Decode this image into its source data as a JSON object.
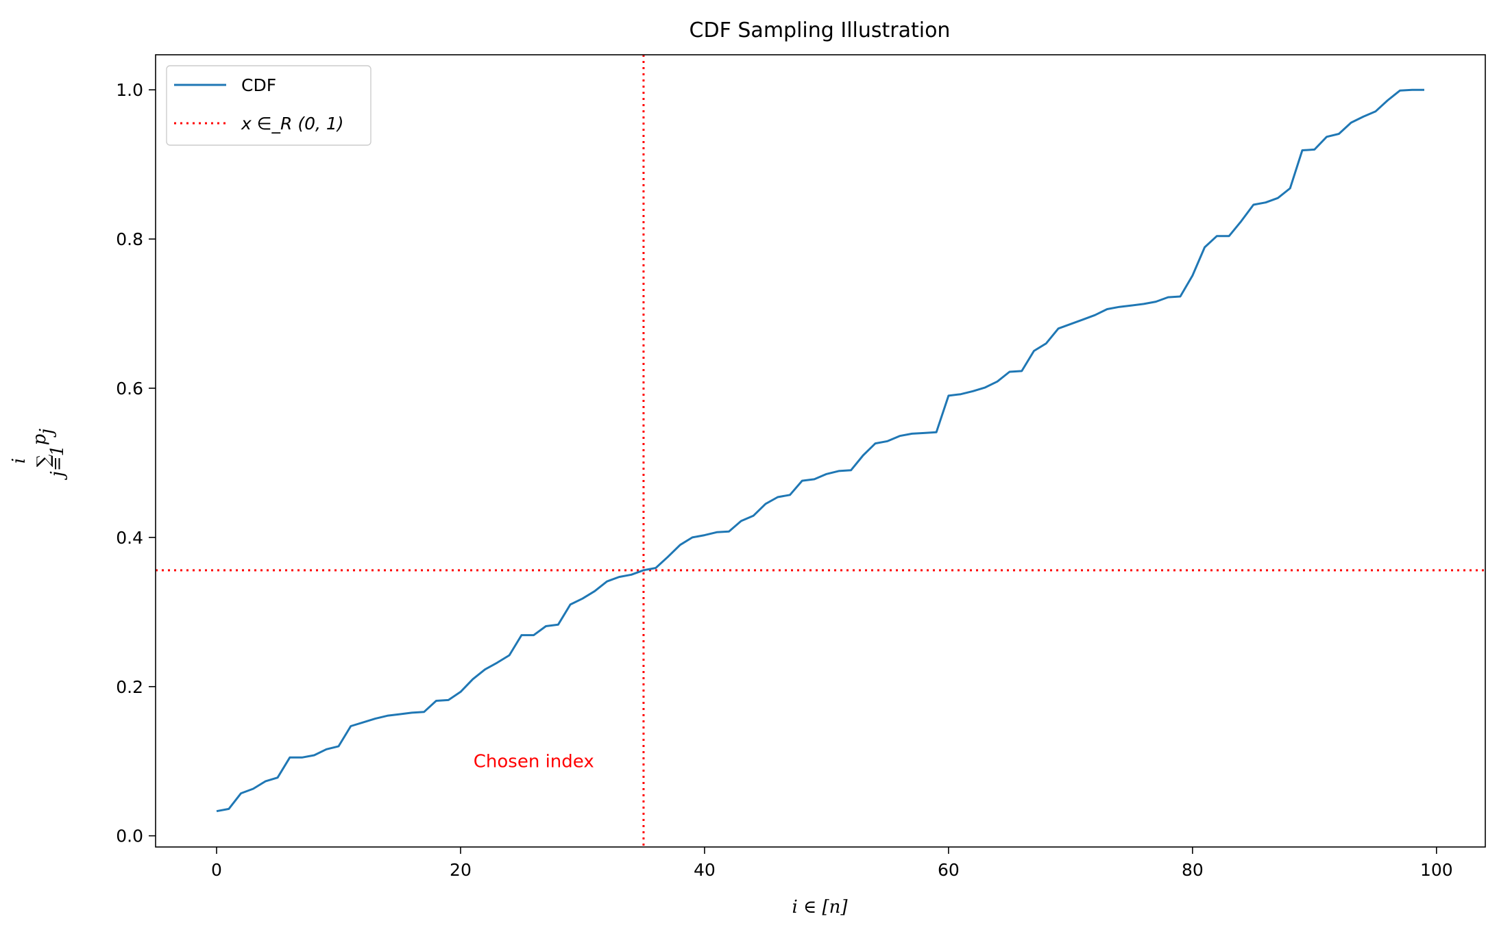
{
  "chart_data": {
    "type": "line",
    "title": "CDF Sampling Illustration",
    "xlabel": "i ∈ [n]",
    "ylabel": {
      "sum": "∑",
      "upper": "i",
      "lower": "j=1",
      "term": "p",
      "term_sub": "j"
    },
    "xlim": [
      -5,
      104
    ],
    "ylim": [
      -0.015,
      1.047
    ],
    "xticks": [
      0,
      20,
      40,
      60,
      80,
      100
    ],
    "yticks": [
      0.0,
      0.2,
      0.4,
      0.6,
      0.8,
      1.0
    ],
    "ytick_labels": [
      "0.0",
      "0.2",
      "0.4",
      "0.6",
      "0.8",
      "1.0"
    ],
    "grid": false,
    "legend_position": "top-left",
    "series": [
      {
        "name": "CDF",
        "color": "#1f77b4",
        "x": [
          0,
          1,
          2,
          3,
          4,
          5,
          6,
          7,
          8,
          9,
          10,
          11,
          12,
          13,
          14,
          15,
          16,
          17,
          18,
          19,
          20,
          21,
          22,
          23,
          24,
          25,
          26,
          27,
          28,
          29,
          30,
          31,
          32,
          33,
          34,
          35,
          36,
          37,
          38,
          39,
          40,
          41,
          42,
          43,
          44,
          45,
          46,
          47,
          48,
          49,
          50,
          51,
          52,
          53,
          54,
          55,
          56,
          57,
          58,
          59,
          60,
          61,
          62,
          63,
          64,
          65,
          66,
          67,
          68,
          69,
          70,
          71,
          72,
          73,
          74,
          75,
          76,
          77,
          78,
          79,
          80,
          81,
          82,
          83,
          84,
          85,
          86,
          87,
          88,
          89,
          90,
          91,
          92,
          93,
          94,
          95,
          96,
          97,
          98,
          99
        ],
        "y": [
          0.033,
          0.036,
          0.057,
          0.063,
          0.073,
          0.078,
          0.105,
          0.105,
          0.108,
          0.116,
          0.12,
          0.147,
          0.152,
          0.157,
          0.161,
          0.163,
          0.165,
          0.166,
          0.181,
          0.182,
          0.193,
          0.21,
          0.223,
          0.232,
          0.242,
          0.269,
          0.269,
          0.281,
          0.283,
          0.31,
          0.318,
          0.328,
          0.341,
          0.347,
          0.35,
          0.356,
          0.359,
          0.374,
          0.39,
          0.4,
          0.403,
          0.407,
          0.408,
          0.422,
          0.429,
          0.445,
          0.454,
          0.457,
          0.476,
          0.478,
          0.485,
          0.489,
          0.49,
          0.51,
          0.526,
          0.529,
          0.536,
          0.539,
          0.54,
          0.541,
          0.59,
          0.592,
          0.596,
          0.601,
          0.609,
          0.622,
          0.623,
          0.65,
          0.66,
          0.68,
          0.686,
          0.692,
          0.698,
          0.706,
          0.709,
          0.711,
          0.713,
          0.716,
          0.722,
          0.723,
          0.751,
          0.789,
          0.804,
          0.804,
          0.824,
          0.846,
          0.849,
          0.855,
          0.868,
          0.919,
          0.92,
          0.937,
          0.941,
          0.956,
          0.964,
          0.971,
          0.986,
          0.999,
          1.0,
          1.0
        ]
      }
    ],
    "reference_lines": {
      "name": "x ∈_R (0, 1)",
      "color": "#ff0000",
      "vertical_x": 35,
      "horizontal_y": 0.356
    },
    "annotation": {
      "text": "Chosen index",
      "x": 26,
      "y": 0.1,
      "color": "#ff0000"
    }
  }
}
